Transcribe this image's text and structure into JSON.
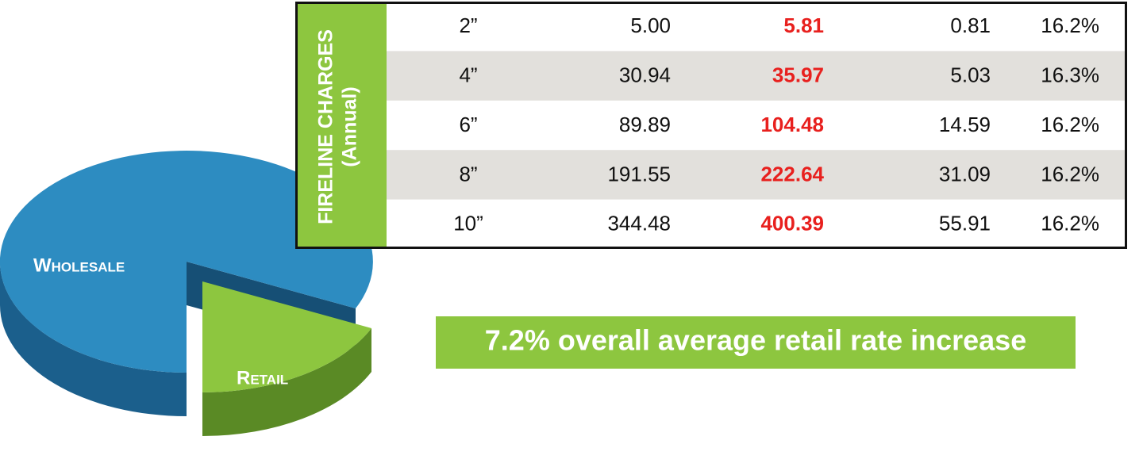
{
  "pie": {
    "labels": [
      "Wholesale",
      "Retail"
    ]
  },
  "table": {
    "header": [
      "FIRELINE CHARGES",
      "(Annual)"
    ],
    "rows": [
      [
        "2”",
        "5.00",
        "5.81",
        "0.81",
        "16.2%"
      ],
      [
        "4”",
        "30.94",
        "35.97",
        "5.03",
        "16.3%"
      ],
      [
        "6”",
        "89.89",
        "104.48",
        "14.59",
        "16.2%"
      ],
      [
        "8”",
        "191.55",
        "222.64",
        "31.09",
        "16.2%"
      ],
      [
        "10”",
        "344.48",
        "400.39",
        "55.91",
        "16.2%"
      ]
    ]
  },
  "banner": "7.2% overall average retail rate increase"
}
